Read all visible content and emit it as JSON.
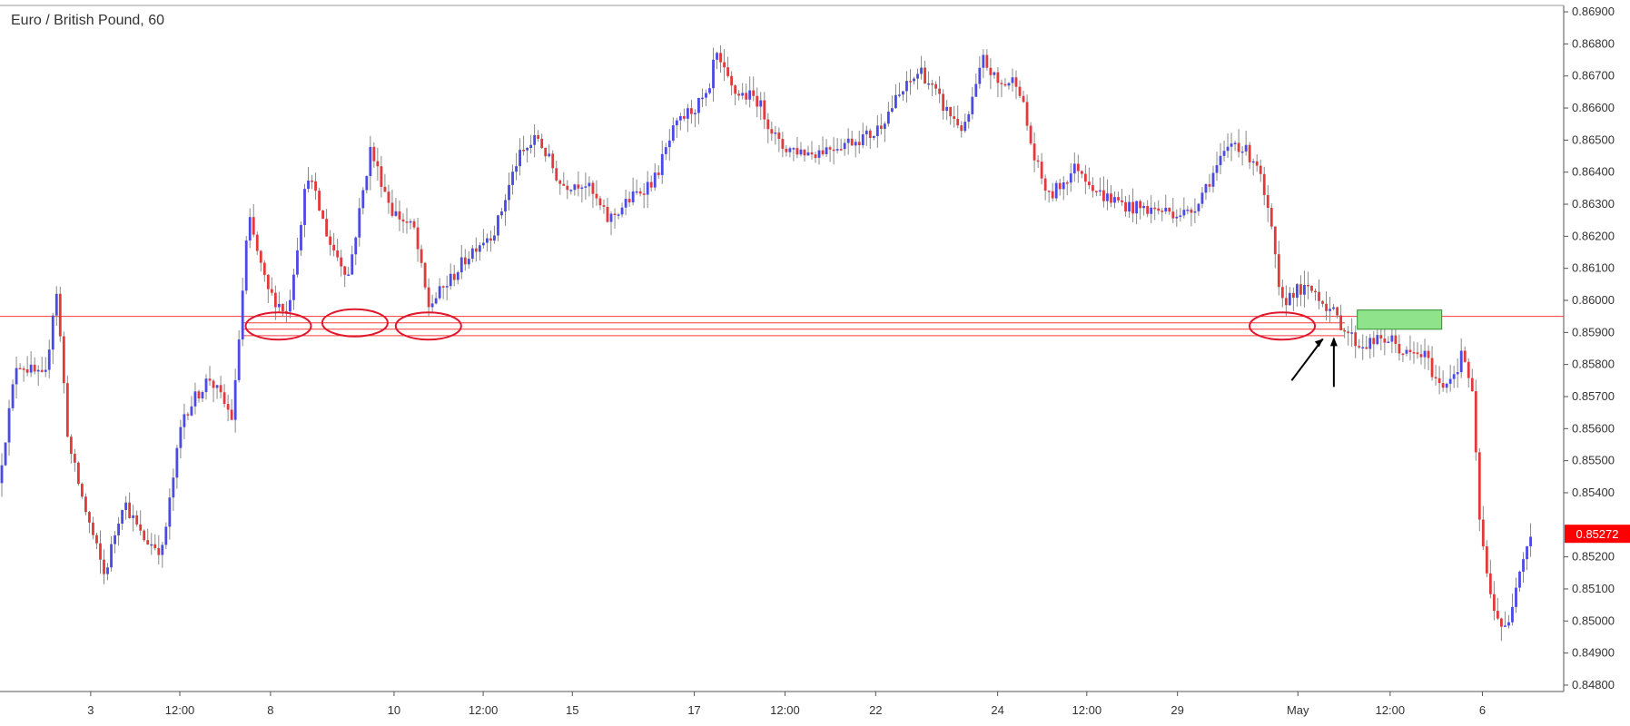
{
  "chart_data": {
    "type": "candlestick",
    "title": "Euro / British Pound, 60",
    "x_tick_labels": [
      "3",
      "12:00",
      "8",
      "10",
      "12:00",
      "15",
      "17",
      "12:00",
      "22",
      "24",
      "12:00",
      "29",
      "May",
      "12:00",
      "6"
    ],
    "y_tick_labels": [
      "0.86900",
      "0.86800",
      "0.86700",
      "0.86600",
      "0.86500",
      "0.86400",
      "0.86300",
      "0.86200",
      "0.86100",
      "0.86000",
      "0.85900",
      "0.85800",
      "0.85700",
      "0.85600",
      "0.85500",
      "0.85400",
      "0.85200",
      "0.85100",
      "0.85000",
      "0.84900",
      "0.84800"
    ],
    "ylim": [
      0.8478,
      0.8692
    ],
    "last_price": "0.85272",
    "last_price_value": 0.85272,
    "path_points": [
      [
        0,
        0.8543
      ],
      [
        0.012,
        0.8581
      ],
      [
        0.03,
        0.8575
      ],
      [
        0.037,
        0.8605
      ],
      [
        0.045,
        0.8555
      ],
      [
        0.055,
        0.8536
      ],
      [
        0.068,
        0.8514
      ],
      [
        0.08,
        0.8538
      ],
      [
        0.092,
        0.8526
      ],
      [
        0.105,
        0.8522
      ],
      [
        0.118,
        0.8564
      ],
      [
        0.135,
        0.8576
      ],
      [
        0.15,
        0.8563
      ],
      [
        0.16,
        0.8626
      ],
      [
        0.172,
        0.8603
      ],
      [
        0.185,
        0.8596
      ],
      [
        0.198,
        0.864
      ],
      [
        0.212,
        0.8618
      ],
      [
        0.224,
        0.8608
      ],
      [
        0.238,
        0.8647
      ],
      [
        0.252,
        0.8628
      ],
      [
        0.266,
        0.8622
      ],
      [
        0.275,
        0.8598
      ],
      [
        0.29,
        0.8607
      ],
      [
        0.305,
        0.8617
      ],
      [
        0.318,
        0.8622
      ],
      [
        0.332,
        0.8644
      ],
      [
        0.345,
        0.8651
      ],
      [
        0.36,
        0.8636
      ],
      [
        0.375,
        0.8637
      ],
      [
        0.39,
        0.8625
      ],
      [
        0.405,
        0.8632
      ],
      [
        0.42,
        0.8638
      ],
      [
        0.432,
        0.8653
      ],
      [
        0.44,
        0.8658
      ],
      [
        0.455,
        0.8664
      ],
      [
        0.458,
        0.8677
      ],
      [
        0.47,
        0.8665
      ],
      [
        0.485,
        0.8663
      ],
      [
        0.5,
        0.8648
      ],
      [
        0.52,
        0.8646
      ],
      [
        0.54,
        0.8649
      ],
      [
        0.56,
        0.8652
      ],
      [
        0.575,
        0.8663
      ],
      [
        0.59,
        0.8672
      ],
      [
        0.605,
        0.866
      ],
      [
        0.618,
        0.8653
      ],
      [
        0.63,
        0.8675
      ],
      [
        0.64,
        0.8667
      ],
      [
        0.652,
        0.8669
      ],
      [
        0.662,
        0.8645
      ],
      [
        0.672,
        0.8632
      ],
      [
        0.69,
        0.8642
      ],
      [
        0.705,
        0.8633
      ],
      [
        0.725,
        0.8629
      ],
      [
        0.745,
        0.8628
      ],
      [
        0.762,
        0.8627
      ],
      [
        0.775,
        0.8638
      ],
      [
        0.79,
        0.865
      ],
      [
        0.805,
        0.8643
      ],
      [
        0.815,
        0.862
      ],
      [
        0.82,
        0.8598
      ],
      [
        0.828,
        0.8603
      ],
      [
        0.842,
        0.8603
      ],
      [
        0.852,
        0.8597
      ],
      [
        0.86,
        0.8592
      ],
      [
        0.87,
        0.8586
      ],
      [
        0.88,
        0.8587
      ],
      [
        0.89,
        0.8588
      ],
      [
        0.9,
        0.8583
      ],
      [
        0.912,
        0.8583
      ],
      [
        0.922,
        0.8573
      ],
      [
        0.932,
        0.8578
      ],
      [
        0.937,
        0.8584
      ],
      [
        0.943,
        0.8569
      ],
      [
        0.947,
        0.8533
      ],
      [
        0.953,
        0.851
      ],
      [
        0.96,
        0.85
      ],
      [
        0.965,
        0.8496
      ],
      [
        0.972,
        0.8516
      ],
      [
        0.98,
        0.8527
      ]
    ],
    "support_lines": [
      0.8595,
      0.8593,
      0.8591,
      0.8589
    ],
    "annotations": {
      "circles": [
        0.8592,
        0.8593,
        0.8592,
        0.8592
      ],
      "green_box": [
        0.8597,
        0.8591
      ],
      "arrows": [
        "diagonal",
        "vertical"
      ]
    },
    "colors": {
      "up": "#4a4ae6",
      "down": "#e03a3a",
      "wick": "#888888",
      "support": "#ff3a3a",
      "circle": "#e0162b",
      "green_box": "#8fe38a",
      "green_border": "#2f8f2f",
      "price_label": "#ff0000"
    }
  }
}
